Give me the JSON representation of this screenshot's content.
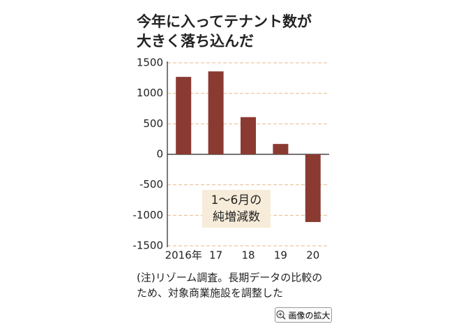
{
  "chart_data": {
    "type": "bar",
    "title_lines": [
      "今年に入ってテナント数が",
      "大きく落ち込んだ"
    ],
    "categories": [
      "2016年",
      "17",
      "18",
      "19",
      "20"
    ],
    "values": [
      1270,
      1360,
      610,
      170,
      -1110
    ],
    "color": "#8b3a32",
    "ylim": [
      -1500,
      1500
    ],
    "yticks": [
      -1500,
      -1000,
      -500,
      0,
      500,
      1000,
      1500
    ],
    "grid": true,
    "annotation_lines": [
      "1～6月の",
      "純増減数"
    ],
    "note_lines": [
      "(注)リゾーム調査。長期データの比較の",
      "ため、対象商業施設を調整した"
    ]
  },
  "button": {
    "label": "画像の拡大"
  }
}
